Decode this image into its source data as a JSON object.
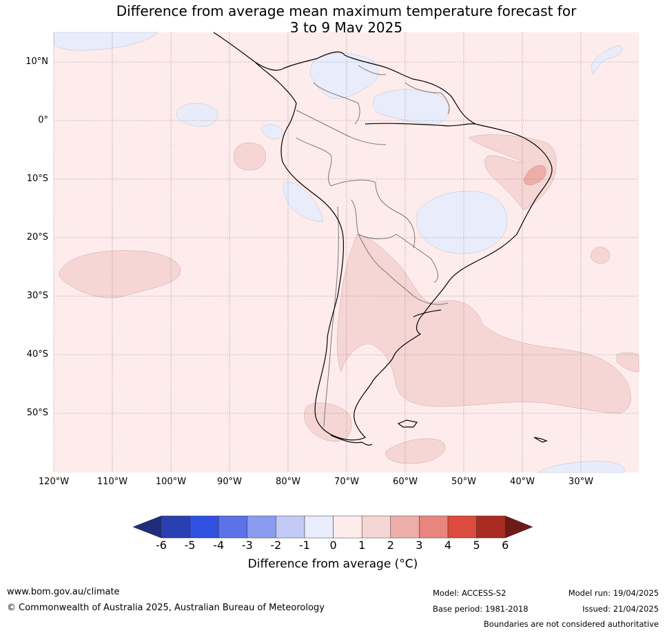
{
  "title_line1": "Difference from average mean maximum temperature forecast for",
  "title_line2": "3 to 9 May 2025",
  "lat_labels": [
    "10°N",
    "0°",
    "10°S",
    "20°S",
    "30°S",
    "40°S",
    "50°S"
  ],
  "lon_labels": [
    "120°W",
    "110°W",
    "100°W",
    "90°W",
    "80°W",
    "70°W",
    "60°W",
    "50°W",
    "40°W",
    "30°W"
  ],
  "colorbar": {
    "ticks": [
      "-6",
      "-5",
      "-4",
      "-3",
      "-2",
      "-1",
      "0",
      "1",
      "2",
      "3",
      "4",
      "5",
      "6"
    ],
    "colors": [
      "#1f2d7a",
      "#2a3fb0",
      "#3050e0",
      "#5b72e8",
      "#8a9cef",
      "#c2caf5",
      "#e9edfb",
      "#fdeceb",
      "#f6d6d4",
      "#edaeaa",
      "#e8857f",
      "#dc4b3e",
      "#aa2b22",
      "#6e1a17"
    ],
    "label": "Difference from average (°C)"
  },
  "footer": {
    "website": "www.bom.gov.au/climate",
    "copyright": "© Commonwealth of Australia 2025, Australian Bureau of Meteorology",
    "model": "Model: ACCESS-S2",
    "base_period": "Base period: 1981-2018",
    "model_run": "Model run: 19/04/2025",
    "issued": "Issued: 21/04/2025",
    "disclaimer": "Boundaries are not considered authoritative"
  }
}
